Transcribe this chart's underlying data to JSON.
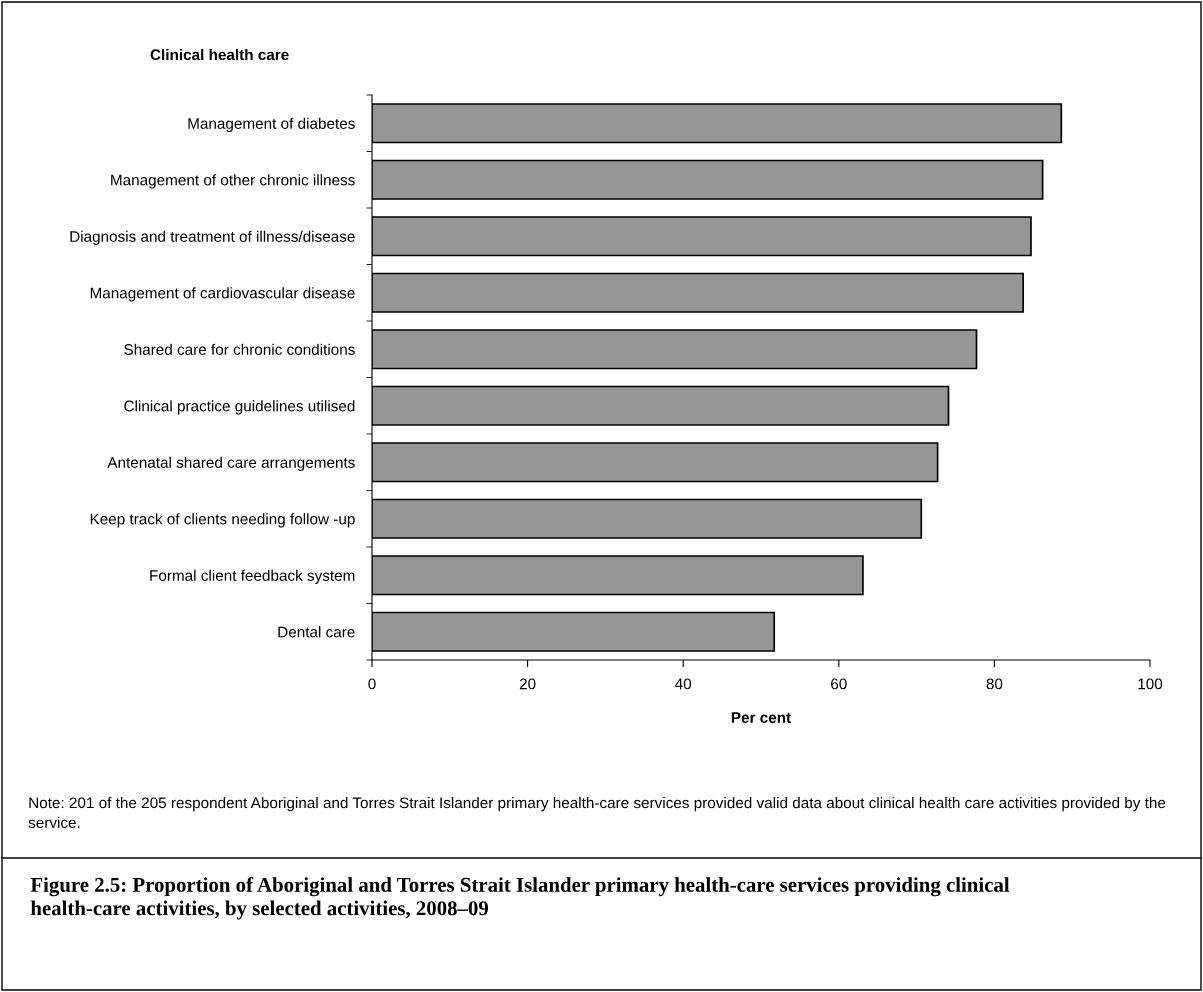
{
  "chart_data": {
    "type": "bar",
    "orientation": "horizontal",
    "title": "Clinical health care",
    "categories": [
      "Management of diabetes",
      "Management of other chronic illness",
      "Diagnosis and treatment of illness/disease",
      "Management of cardiovascular disease",
      "Shared care for chronic conditions",
      "Clinical practice guidelines utilised",
      "Antenatal shared care arrangements",
      "Keep track of clients needing follow -up",
      "Formal client feedback system",
      "Dental care"
    ],
    "values": [
      88.6,
      86.2,
      84.7,
      83.7,
      77.7,
      74.1,
      72.7,
      70.6,
      63.1,
      51.7
    ],
    "color": "#969696",
    "xlim": [
      0,
      100
    ],
    "xticks": [
      0,
      20,
      40,
      60,
      80,
      100
    ],
    "xlabel": "Per cent",
    "grid": false,
    "legend": false,
    "annotations": [
      "Note: 201 of the 205 respondent Aboriginal and Torres Strait Islander primary health-care services provided valid data about clinical health care activities provided by the service.",
      "Figure 2.5: Proportion of Aboriginal and Torres Strait Islander primary health-care services providing clinical health-care activities, by selected activities, 2008–09"
    ]
  }
}
